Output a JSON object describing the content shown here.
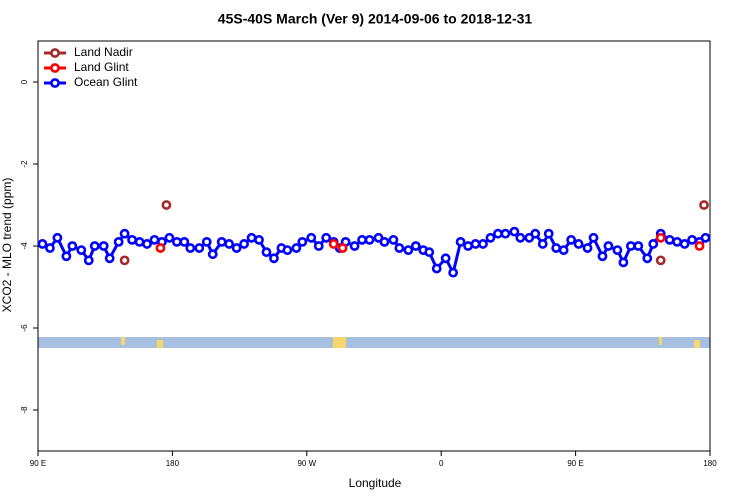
{
  "chart_data": {
    "type": "line",
    "title": "45S-40S March (Ver 9)   2014-09-06 to 2018-12-31",
    "xlabel": "Longitude",
    "ylabel": "XCO2 - MLO trend (ppm)",
    "xlim": [
      90,
      540
    ],
    "ylim": [
      -9,
      1
    ],
    "xticks": [
      {
        "value": 90,
        "label": "90 E"
      },
      180,
      {
        "value": 270,
        "label": "90 W"
      },
      {
        "value": 360,
        "label": "0"
      },
      {
        "value": 450,
        "label": "90 E"
      },
      {
        "value": 540,
        "label": "180"
      }
    ],
    "yticks": [
      0,
      -2,
      -4,
      -6,
      -8
    ],
    "legend": "top-left",
    "series": [
      {
        "name": "Land Nadir",
        "color": "#a52a2a",
        "lines": false,
        "x": [
          148,
          176,
          507,
          536
        ],
        "values": [
          -4.35,
          -3.0,
          -4.35,
          -3.0
        ]
      },
      {
        "name": "Land Glint",
        "color": "#ff0000",
        "lines": false,
        "x": [
          172,
          288,
          294,
          507,
          533
        ],
        "values": [
          -4.05,
          -3.95,
          -4.05,
          -3.8,
          -4.0
        ]
      },
      {
        "name": "Ocean Glint",
        "color": "#0000ff",
        "lines": true,
        "x": [
          93,
          98,
          103,
          109,
          113,
          119,
          124,
          128,
          134,
          138,
          144,
          148,
          153,
          158,
          163,
          168,
          173,
          178,
          183,
          188,
          192,
          198,
          203,
          207,
          213,
          218,
          223,
          228,
          233,
          238,
          243,
          248,
          253,
          257,
          263,
          267,
          273,
          278,
          283,
          288,
          292,
          296,
          302,
          307,
          312,
          318,
          322,
          328,
          332,
          338,
          343,
          348,
          352,
          357,
          363,
          368,
          373,
          378,
          383,
          388,
          393,
          398,
          403,
          409,
          413,
          419,
          423,
          428,
          432,
          437,
          442,
          447,
          452,
          458,
          462,
          468,
          472,
          478,
          482,
          487,
          492,
          498,
          502,
          507,
          513,
          518,
          523,
          528,
          533,
          537
        ],
        "values": [
          -3.95,
          -4.05,
          -3.8,
          -4.25,
          -4.0,
          -4.1,
          -4.35,
          -4.0,
          -4.0,
          -4.3,
          -3.9,
          -3.7,
          -3.85,
          -3.9,
          -3.95,
          -3.85,
          -3.9,
          -3.8,
          -3.9,
          -3.9,
          -4.05,
          -4.05,
          -3.9,
          -4.2,
          -3.9,
          -3.95,
          -4.05,
          -3.95,
          -3.8,
          -3.85,
          -4.15,
          -4.3,
          -4.05,
          -4.1,
          -4.05,
          -3.9,
          -3.8,
          -4.0,
          -3.8,
          -3.9,
          -4.05,
          -3.9,
          -4.0,
          -3.85,
          -3.85,
          -3.8,
          -3.9,
          -3.85,
          -4.05,
          -4.1,
          -4.0,
          -4.1,
          -4.15,
          -4.55,
          -4.3,
          -4.65,
          -3.9,
          -4.0,
          -3.95,
          -3.95,
          -3.8,
          -3.7,
          -3.7,
          -3.65,
          -3.8,
          -3.8,
          -3.7,
          -3.95,
          -3.7,
          -4.05,
          -4.1,
          -3.85,
          -3.95,
          -4.05,
          -3.8,
          -4.25,
          -4.0,
          -4.1,
          -4.4,
          -4.0,
          -4.0,
          -4.3,
          -3.95,
          -3.7,
          -3.85,
          -3.9,
          -3.95,
          -3.85,
          -3.9,
          -3.8
        ]
      }
    ]
  }
}
